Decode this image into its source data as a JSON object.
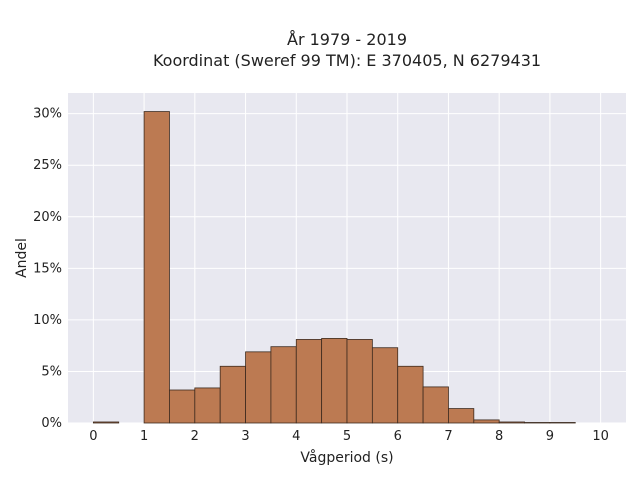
{
  "chart_data": {
    "type": "bar",
    "title_line1": "År 1979 - 2019",
    "title_line2": "Koordinat (Sweref 99 TM): E 370405, N 6279431",
    "xlabel": "Vågperiod (s)",
    "ylabel": "Andel",
    "bin_width": 0.5,
    "bins": [
      {
        "start": 0.0,
        "value": 0.1
      },
      {
        "start": 0.5,
        "value": 0.0
      },
      {
        "start": 1.0,
        "value": 30.2
      },
      {
        "start": 1.5,
        "value": 3.2
      },
      {
        "start": 2.0,
        "value": 3.4
      },
      {
        "start": 2.5,
        "value": 5.5
      },
      {
        "start": 3.0,
        "value": 6.9
      },
      {
        "start": 3.5,
        "value": 7.4
      },
      {
        "start": 4.0,
        "value": 8.1
      },
      {
        "start": 4.5,
        "value": 8.2
      },
      {
        "start": 5.0,
        "value": 8.1
      },
      {
        "start": 5.5,
        "value": 7.3
      },
      {
        "start": 6.0,
        "value": 5.5
      },
      {
        "start": 6.5,
        "value": 3.5
      },
      {
        "start": 7.0,
        "value": 1.4
      },
      {
        "start": 7.5,
        "value": 0.3
      },
      {
        "start": 8.0,
        "value": 0.1
      },
      {
        "start": 8.5,
        "value": 0.05
      },
      {
        "start": 9.0,
        "value": 0.05
      }
    ],
    "xlim": [
      -0.5,
      10.5
    ],
    "ylim": [
      0,
      32
    ],
    "xticks": [
      0,
      1,
      2,
      3,
      4,
      5,
      6,
      7,
      8,
      9,
      10
    ],
    "xtick_labels": [
      "0",
      "1",
      "2",
      "3",
      "4",
      "5",
      "6",
      "7",
      "8",
      "9",
      "10"
    ],
    "yticks": [
      0,
      5,
      10,
      15,
      20,
      25,
      30
    ],
    "ytick_labels": [
      "0%",
      "5%",
      "10%",
      "15%",
      "20%",
      "25%",
      "30%"
    ],
    "grid": true,
    "colors": {
      "bar_fill": "#bc7a52",
      "bar_edge": "#3d2a1e",
      "plot_bg": "#e8e8f0",
      "grid": "#ffffff"
    }
  }
}
